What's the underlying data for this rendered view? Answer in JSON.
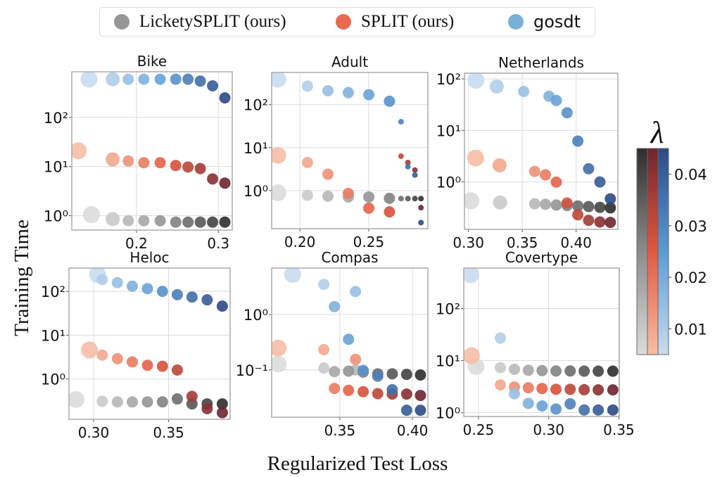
{
  "legend": {
    "items": [
      {
        "label": "LicketySPLIT (ours)",
        "color": "#969696"
      },
      {
        "label": "SPLIT (ours)",
        "color": "#e8694f"
      },
      {
        "label": "gosdt",
        "color": "#7aafd6"
      }
    ]
  },
  "chart_data": {
    "type": "scatter",
    "ylabel": "Training Time",
    "xlabel": "Regularized Test Loss",
    "yscale": "log",
    "grid": true,
    "legend_placement": "top-center",
    "colorbar": {
      "label": "λ",
      "range": [
        0.005,
        0.045
      ],
      "ticks": [
        0.01,
        0.02,
        0.03,
        0.04
      ],
      "tick_labels": [
        "0.01",
        "0.02",
        "0.03",
        "0.04"
      ],
      "colormaps": {
        "LicketySPLIT (ours)": [
          "#dcdcdc",
          "#8c8c8c",
          "#2e2e2e"
        ],
        "SPLIT (ours)": [
          "#f6bfa6",
          "#e3583f",
          "#6e2530"
        ],
        "gosdt": [
          "#c9dcef",
          "#5d9bd3",
          "#2c4a86"
        ]
      }
    },
    "lambda": [
      0.005,
      0.0094,
      0.0139,
      0.0183,
      0.0228,
      0.0272,
      0.0317,
      0.0361,
      0.0406,
      0.045
    ],
    "panels": [
      {
        "title": "Bike",
        "xlim": [
          0.121,
          0.317
        ],
        "ylim": [
          0.51,
          850
        ],
        "xticks": [
          0.2,
          0.3
        ],
        "xtick_labels": [
          "0.2",
          "0.3"
        ],
        "yticks": [
          1,
          10,
          100
        ],
        "ytick_labels": [
          "10⁰",
          "10¹",
          "10²"
        ],
        "series": [
          {
            "name": "LicketySPLIT (ours)",
            "x": [
              0.145,
              0.171,
              0.19,
              0.209,
              0.229,
              0.248,
              0.263,
              0.278,
              0.293,
              0.308
            ],
            "y": [
              1.05,
              0.85,
              0.79,
              0.79,
              0.79,
              0.74,
              0.74,
              0.74,
              0.74,
              0.74
            ]
          },
          {
            "name": "SPLIT (ours)",
            "x": [
              0.129,
              0.171,
              0.19,
              0.209,
              0.229,
              0.248,
              0.263,
              0.278,
              0.293,
              0.308
            ],
            "y": [
              21,
              14,
              13,
              12,
              12,
              10.5,
              9.8,
              9.1,
              5.6,
              4.6
            ]
          },
          {
            "name": "gosdt",
            "x": [
              0.142,
              0.171,
              0.19,
              0.209,
              0.229,
              0.248,
              0.263,
              0.278,
              0.293,
              0.308
            ],
            "y": [
              600,
              600,
              600,
              600,
              600,
              600,
              600,
              550,
              440,
              250
            ]
          }
        ]
      },
      {
        "title": "Adult",
        "xlim": [
          0.1795,
          0.293
        ],
        "ylim": [
          0.13,
          560
        ],
        "xticks": [
          0.2,
          0.25
        ],
        "xtick_labels": [
          "0.20",
          "0.25"
        ],
        "yticks": [
          1,
          10,
          100
        ],
        "ytick_labels": [
          "10⁰",
          "10¹",
          "10²"
        ],
        "series": [
          {
            "name": "LicketySPLIT (ours)",
            "x": [
              0.184,
              0.2055,
              0.2204,
              0.2352,
              0.2501,
              0.2651,
              0.2735,
              0.2785,
              0.2836,
              0.288
            ],
            "y": [
              0.89,
              0.78,
              0.74,
              0.71,
              0.71,
              0.66,
              0.65,
              0.65,
              0.65,
              0.65
            ]
          },
          {
            "name": "SPLIT (ours)",
            "x": [
              0.184,
              0.2055,
              0.2204,
              0.2352,
              0.2501,
              0.2651,
              0.2735,
              0.2785,
              0.2836,
              0.288
            ],
            "y": [
              6.6,
              4.5,
              2.4,
              0.86,
              0.39,
              0.32,
              6.3,
              4.5,
              3.0,
              0.4
            ]
          },
          {
            "name": "gosdt",
            "x": [
              0.184,
              0.2055,
              0.2204,
              0.2352,
              0.2501,
              0.2651,
              0.2735,
              0.2785,
              0.2836,
              0.288
            ],
            "y": [
              390,
              270,
              210,
              190,
              170,
              120,
              40,
              3.6,
              2.3,
              0.18
            ]
          }
        ]
      },
      {
        "title": "Netherlands",
        "xlim": [
          0.2963,
          0.4388
        ],
        "ylim": [
          0.12,
          129
        ],
        "xticks": [
          0.3,
          0.35,
          0.4
        ],
        "xtick_labels": [
          "0.30",
          "0.35",
          "0.40"
        ],
        "yticks": [
          1,
          10,
          100
        ],
        "ytick_labels": [
          "10⁰",
          "10¹",
          "10²"
        ],
        "series": [
          {
            "name": "LicketySPLIT (ours)",
            "x": [
              0.3023,
              0.3294,
              0.3615,
              0.3715,
              0.3816,
              0.3916,
              0.4016,
              0.4116,
              0.4221,
              0.4318
            ],
            "y": [
              0.43,
              0.4,
              0.376,
              0.368,
              0.356,
              0.349,
              0.342,
              0.332,
              0.321,
              0.314
            ]
          },
          {
            "name": "SPLIT (ours)",
            "x": [
              0.3067,
              0.3289,
              0.3615,
              0.3715,
              0.3816,
              0.3916,
              0.4016,
              0.4116,
              0.4221,
              0.4318
            ],
            "y": [
              2.9,
              2.1,
              1.6,
              1.37,
              0.99,
              0.39,
              0.23,
              0.18,
              0.167,
              0.164
            ]
          },
          {
            "name": "gosdt",
            "x": [
              0.307,
              0.3263,
              0.3513,
              0.3748,
              0.3816,
              0.3916,
              0.4016,
              0.4116,
              0.4221,
              0.4318
            ],
            "y": [
              94,
              71,
              57,
              46,
              38,
              22,
              6.2,
              1.8,
              1.0,
              0.47
            ]
          }
        ]
      },
      {
        "title": "Heloc",
        "xlim": [
          0.2836,
          0.391
        ],
        "ylim": [
          0.12,
          340
        ],
        "xticks": [
          0.3,
          0.35
        ],
        "xtick_labels": [
          "0.30",
          "0.35"
        ],
        "yticks": [
          1,
          10,
          100
        ],
        "ytick_labels": [
          "10⁰",
          "10¹",
          "10²"
        ],
        "series": [
          {
            "name": "LicketySPLIT (ours)",
            "x": [
              0.2883,
              0.3058,
              0.3159,
              0.3258,
              0.3359,
              0.3459,
              0.3558,
              0.3656,
              0.3757,
              0.3858
            ],
            "y": [
              0.34,
              0.31,
              0.3,
              0.3,
              0.3,
              0.3,
              0.35,
              0.27,
              0.27,
              0.27
            ]
          },
          {
            "name": "SPLIT (ours)",
            "x": [
              0.2972,
              0.3058,
              0.3159,
              0.3258,
              0.3359,
              0.3459,
              0.3558,
              0.3656,
              0.3757,
              0.3858
            ],
            "y": [
              4.6,
              3.5,
              2.9,
              2.45,
              2.05,
              1.95,
              1.6,
              0.4,
              0.21,
              0.17
            ]
          },
          {
            "name": "gosdt",
            "x": [
              0.3026,
              0.3058,
              0.3159,
              0.3258,
              0.3359,
              0.3459,
              0.3558,
              0.3656,
              0.3757,
              0.3858
            ],
            "y": [
              243,
              186,
              158,
              131,
              115,
              100,
              84,
              74,
              64,
              46
            ]
          }
        ]
      },
      {
        "title": "Compas",
        "xlim": [
          0.3031,
          0.4106
        ],
        "ylim": [
          0.014,
          6.9
        ],
        "xticks": [
          0.35,
          0.4
        ],
        "xtick_labels": [
          "0.35",
          "0.40"
        ],
        "yticks": [
          0.1,
          1
        ],
        "ytick_labels": [
          "10⁻¹",
          "10⁰"
        ],
        "series": [
          {
            "name": "LicketySPLIT (ours)",
            "x": [
              0.3076,
              0.339,
              0.3608,
              0.3463,
              0.356,
              0.3661,
              0.3761,
              0.3861,
              0.396,
              0.4055
            ],
            "y": [
              0.128,
              0.108,
              0.1,
              0.093,
              0.095,
              0.091,
              0.085,
              0.085,
              0.083,
              0.081
            ]
          },
          {
            "name": "SPLIT (ours)",
            "x": [
              0.3076,
              0.339,
              0.3608,
              0.3463,
              0.356,
              0.3661,
              0.3761,
              0.3861,
              0.396,
              0.4055
            ],
            "y": [
              0.248,
              0.232,
              0.155,
              0.0463,
              0.0428,
              0.0404,
              0.0373,
              0.0366,
              0.0366,
              0.0346
            ]
          },
          {
            "name": "gosdt",
            "x": [
              0.3176,
              0.339,
              0.3608,
              0.3463,
              0.356,
              0.3661,
              0.3761,
              0.3861,
              0.396,
              0.4055
            ],
            "y": [
              5.3,
              3.5,
              2.6,
              1.39,
              0.357,
              0.098,
              0.077,
              0.044,
              0.0187,
              0.0187
            ]
          }
        ]
      },
      {
        "title": "Covertype",
        "xlim": [
          0.2395,
          0.3503
        ],
        "ylim": [
          0.84,
          600
        ],
        "xticks": [
          0.25,
          0.3,
          0.35
        ],
        "xtick_labels": [
          "0.25",
          "0.30",
          "0.35"
        ],
        "yticks": [
          1,
          10,
          100
        ],
        "ytick_labels": [
          "10⁰",
          "10¹",
          "10²"
        ],
        "series": [
          {
            "name": "LicketySPLIT (ours)",
            "x": [
              0.2483,
              0.2656,
              0.2756,
              0.2855,
              0.2953,
              0.3052,
              0.3153,
              0.3253,
              0.3353,
              0.3457
            ],
            "y": [
              7.7,
              7.3,
              6.8,
              6.5,
              6.4,
              6.3,
              6.3,
              6.25,
              6.25,
              6.25
            ]
          },
          {
            "name": "SPLIT (ours)",
            "x": [
              0.245,
              0.2656,
              0.2756,
              0.2855,
              0.2953,
              0.3052,
              0.3153,
              0.3253,
              0.3353,
              0.3457
            ],
            "y": [
              12.4,
              3.4,
              3.1,
              3.0,
              2.9,
              2.8,
              2.8,
              2.75,
              2.73,
              2.73
            ]
          },
          {
            "name": "gosdt",
            "x": [
              0.2445,
              0.2656,
              0.2756,
              0.2855,
              0.2953,
              0.3052,
              0.3153,
              0.3253,
              0.3353,
              0.3457
            ],
            "y": [
              447,
              27,
              2.3,
              1.5,
              1.34,
              1.17,
              1.47,
              1.12,
              1.12,
              1.12
            ]
          }
        ]
      }
    ]
  }
}
